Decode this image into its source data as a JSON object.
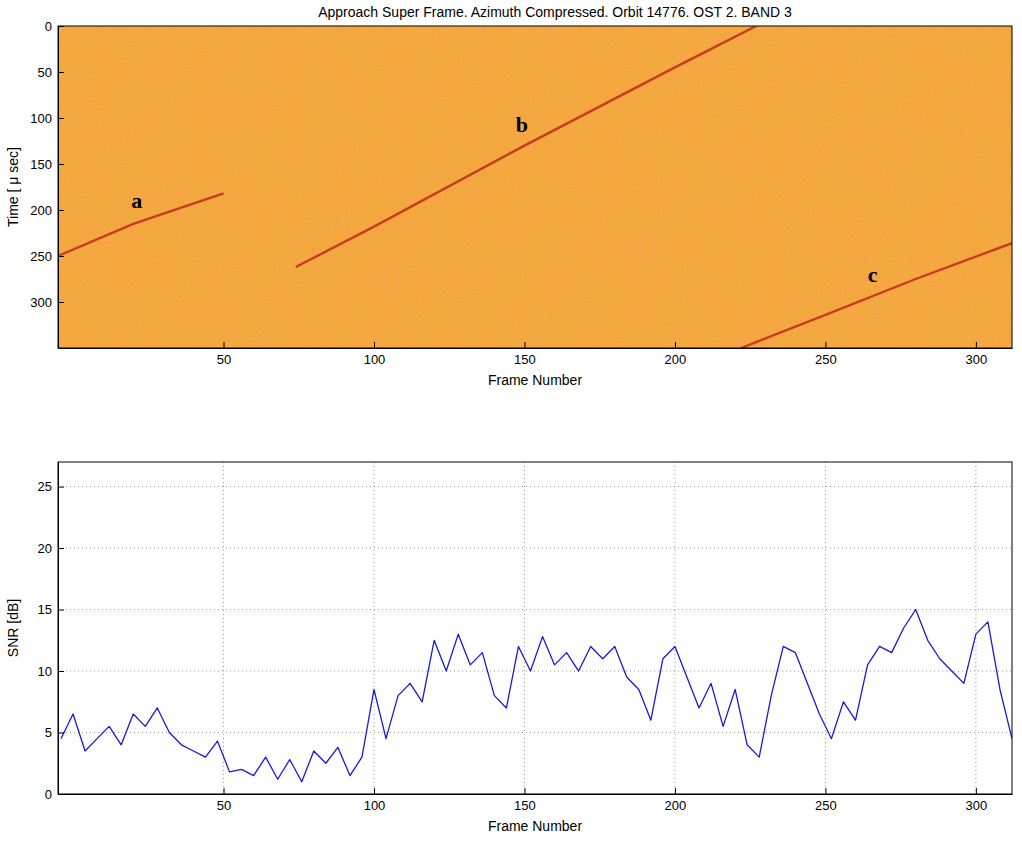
{
  "chart_data": [
    {
      "type": "line",
      "title": "Approach Super Frame. Azimuth Compressed. Orbit 14776. OST 2. BAND 3",
      "x_label": "Frame Number",
      "y_label": "Time [ μ sec]",
      "xlim": [
        -5,
        312
      ],
      "ylim": [
        350,
        0
      ],
      "xticks": [
        50,
        100,
        150,
        200,
        250,
        300
      ],
      "yticks": [
        0,
        50,
        100,
        150,
        200,
        250,
        300
      ],
      "grid": false,
      "series": [
        {
          "label": "a",
          "color": "#c0281e",
          "x": [
            -5,
            20,
            50
          ],
          "values": [
            250,
            215,
            182
          ]
        },
        {
          "label": "b",
          "color": "#c0281e",
          "x": [
            74,
            100,
            150,
            200,
            227
          ],
          "values": [
            262,
            218,
            130,
            45,
            0
          ]
        },
        {
          "label": "c",
          "color": "#c0281e",
          "x": [
            222,
            250,
            280,
            312
          ],
          "values": [
            350,
            314,
            275,
            236
          ]
        }
      ]
    },
    {
      "type": "line",
      "x_label": "Frame Number",
      "y_label": "SNR [dB]",
      "xlim": [
        -5,
        312
      ],
      "ylim": [
        0,
        27
      ],
      "xticks": [
        50,
        100,
        150,
        200,
        250,
        300
      ],
      "yticks": [
        0,
        5,
        10,
        15,
        20,
        25
      ],
      "grid": true,
      "series": [
        {
          "color": "#1a1ad6",
          "x": [
            -4,
            0,
            4,
            8,
            12,
            16,
            20,
            24,
            28,
            32,
            36,
            40,
            44,
            48,
            52,
            56,
            60,
            64,
            68,
            72,
            76,
            80,
            84,
            88,
            92,
            96,
            100,
            104,
            108,
            112,
            116,
            120,
            124,
            128,
            132,
            136,
            140,
            144,
            148,
            152,
            156,
            160,
            164,
            168,
            172,
            176,
            180,
            184,
            188,
            192,
            196,
            200,
            204,
            208,
            212,
            216,
            220,
            224,
            228,
            232,
            236,
            240,
            244,
            248,
            252,
            256,
            260,
            264,
            268,
            272,
            276,
            280,
            284,
            288,
            292,
            296,
            300,
            304,
            308,
            312
          ],
          "values": [
            4.5,
            6.5,
            3.5,
            4.5,
            5.5,
            4,
            6.5,
            5.5,
            7,
            5,
            4,
            3.5,
            3,
            4.3,
            1.8,
            2,
            1.5,
            3,
            1.2,
            2.8,
            1,
            3.5,
            2.5,
            3.8,
            1.5,
            3,
            8.5,
            4.5,
            8,
            9,
            7.5,
            12.5,
            10,
            13,
            10.5,
            11.5,
            8,
            7,
            12,
            10,
            12.8,
            10.5,
            11.5,
            10,
            12,
            11,
            12,
            9.5,
            8.5,
            6,
            11,
            12,
            9.5,
            7,
            9,
            5.5,
            8.5,
            4,
            3,
            8,
            12,
            11.5,
            9,
            6.5,
            4.5,
            7.5,
            6,
            10.5,
            12,
            11.5,
            13.5,
            15,
            12.5,
            11,
            10,
            9,
            13,
            14,
            8.5,
            4.5
          ]
        }
      ]
    }
  ]
}
